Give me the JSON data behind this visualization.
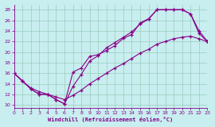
{
  "xlabel": "Windchill (Refroidissement éolien,°C)",
  "xlim": [
    0,
    23
  ],
  "ylim": [
    9.5,
    29
  ],
  "xticks": [
    0,
    1,
    2,
    3,
    4,
    5,
    6,
    7,
    8,
    9,
    10,
    11,
    12,
    13,
    14,
    15,
    16,
    17,
    18,
    19,
    20,
    21,
    22,
    23
  ],
  "yticks": [
    10,
    12,
    14,
    16,
    18,
    20,
    22,
    24,
    26,
    28
  ],
  "bg_color": "#c8eef0",
  "line_color": "#880088",
  "grid_color": "#99ccbb",
  "line1_x": [
    0,
    1,
    2,
    3,
    4,
    5,
    6,
    7,
    8,
    9,
    10,
    11,
    12,
    13,
    14,
    15,
    16,
    17,
    18,
    19,
    20,
    21,
    22,
    23
  ],
  "line1_y": [
    16,
    14.5,
    13,
    12,
    12,
    11,
    10.2,
    13.5,
    15.8,
    18.3,
    19.3,
    20.8,
    21.8,
    22.8,
    23.8,
    25.3,
    26.2,
    28,
    28,
    28,
    28,
    27.2,
    24,
    22
  ],
  "line2_x": [
    0,
    1,
    2,
    3,
    4,
    5,
    6,
    7,
    8,
    9,
    10,
    11,
    12,
    13,
    14,
    15,
    16,
    17,
    18,
    19,
    20,
    21,
    22,
    23
  ],
  "line2_y": [
    16,
    14.5,
    13,
    12,
    12,
    11,
    10.2,
    16.2,
    17,
    19.2,
    19.5,
    20.3,
    21.2,
    22.6,
    23.3,
    25.5,
    26.3,
    28,
    28,
    28,
    28,
    27.2,
    23.5,
    22
  ],
  "line3_x": [
    0,
    1,
    2,
    3,
    4,
    5,
    6,
    7,
    8,
    9,
    10,
    11,
    12,
    13,
    14,
    15,
    16,
    17,
    18,
    19,
    20,
    21,
    22,
    23
  ],
  "line3_y": [
    16,
    14.5,
    13.2,
    12.5,
    12,
    11.5,
    11,
    11.8,
    12.8,
    14,
    15,
    16,
    17,
    17.8,
    18.8,
    19.8,
    20.5,
    21.5,
    22,
    22.5,
    22.8,
    23,
    22.5,
    22
  ]
}
